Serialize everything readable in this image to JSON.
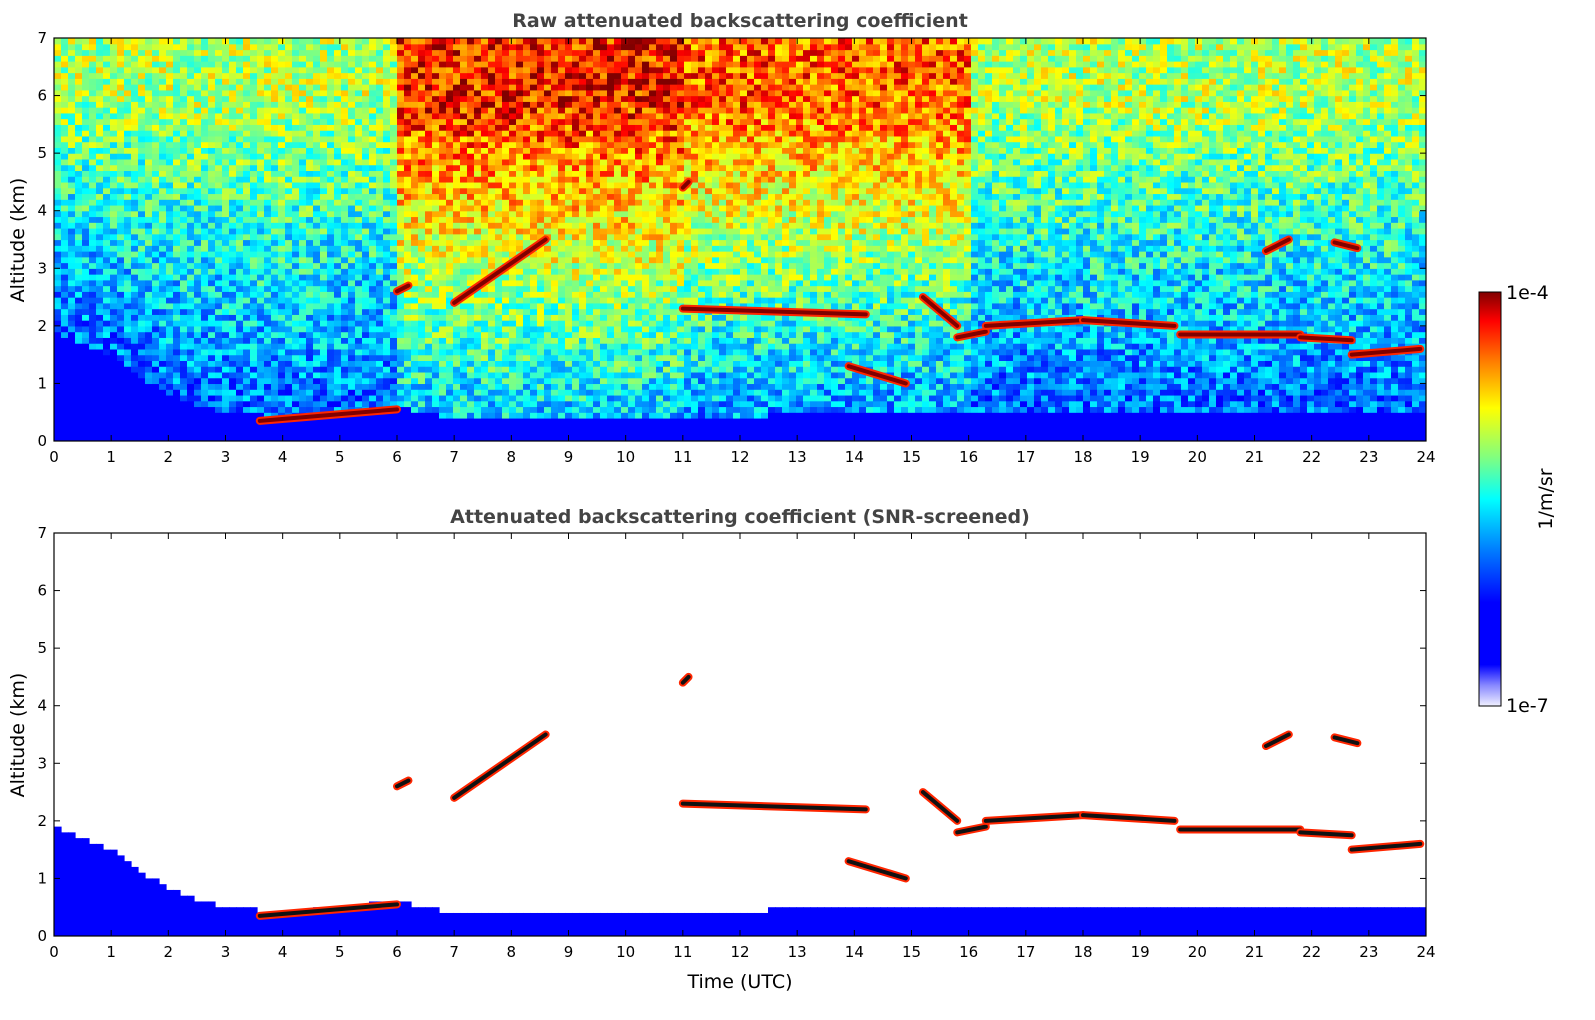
{
  "chart_data": [
    {
      "type": "heatmap",
      "title": "Raw attenuated backscattering coefficient",
      "xlabel": "",
      "ylabel": "Altitude (km)",
      "xlim": [
        0,
        24
      ],
      "ylim": [
        0,
        7
      ],
      "x_ticks": [
        "0",
        "1",
        "2",
        "3",
        "4",
        "5",
        "6",
        "7",
        "8",
        "9",
        "10",
        "11",
        "12",
        "13",
        "14",
        "15",
        "16",
        "17",
        "18",
        "19",
        "20",
        "21",
        "22",
        "23",
        "24"
      ],
      "y_ticks": [
        "0",
        "1",
        "2",
        "3",
        "4",
        "5",
        "6",
        "7"
      ],
      "background_noise": [
        {
          "time_start": 0,
          "time_end": 6,
          "level_low": 0.35,
          "level_high": 0.65
        },
        {
          "time_start": 6,
          "time_end": 11,
          "level_low": 0.45,
          "level_high": 0.9
        },
        {
          "time_start": 11,
          "time_end": 16,
          "level_low": 0.4,
          "level_high": 0.85
        },
        {
          "time_start": 16,
          "time_end": 24,
          "level_low": 0.35,
          "level_high": 0.65
        }
      ],
      "boundary_layer": [
        {
          "time": 0,
          "top_km": 1.9
        },
        {
          "time": 1,
          "top_km": 1.5
        },
        {
          "time": 2,
          "top_km": 0.8
        },
        {
          "time": 3,
          "top_km": 0.5
        },
        {
          "time": 4,
          "top_km": 0.4
        },
        {
          "time": 5,
          "top_km": 0.5
        },
        {
          "time": 6,
          "top_km": 0.6
        },
        {
          "time": 7,
          "top_km": 0.4
        },
        {
          "time": 10,
          "top_km": 0.4
        },
        {
          "time": 15,
          "top_km": 0.5
        },
        {
          "time": 24,
          "top_km": 0.5
        }
      ],
      "cloud_layers": [
        {
          "t0": 3.6,
          "t1": 6.0,
          "alt0": 0.35,
          "alt1": 0.55
        },
        {
          "t0": 6.0,
          "t1": 6.2,
          "alt0": 2.6,
          "alt1": 2.7
        },
        {
          "t0": 7.0,
          "t1": 8.6,
          "alt0": 2.4,
          "alt1": 3.5
        },
        {
          "t0": 11.0,
          "t1": 11.1,
          "alt0": 4.4,
          "alt1": 4.5
        },
        {
          "t0": 11.0,
          "t1": 14.2,
          "alt0": 2.3,
          "alt1": 2.2
        },
        {
          "t0": 13.9,
          "t1": 14.9,
          "alt0": 1.3,
          "alt1": 1.0
        },
        {
          "t0": 15.2,
          "t1": 15.8,
          "alt0": 2.5,
          "alt1": 2.0
        },
        {
          "t0": 15.8,
          "t1": 16.3,
          "alt0": 1.8,
          "alt1": 1.9
        },
        {
          "t0": 16.3,
          "t1": 18.0,
          "alt0": 2.0,
          "alt1": 2.1
        },
        {
          "t0": 18.0,
          "t1": 19.6,
          "alt0": 2.1,
          "alt1": 2.0
        },
        {
          "t0": 19.7,
          "t1": 21.8,
          "alt0": 1.85,
          "alt1": 1.85
        },
        {
          "t0": 21.8,
          "t1": 22.7,
          "alt0": 1.8,
          "alt1": 1.75
        },
        {
          "t0": 22.7,
          "t1": 23.9,
          "alt0": 1.5,
          "alt1": 1.6
        },
        {
          "t0": 21.2,
          "t1": 21.6,
          "alt0": 3.3,
          "alt1": 3.5
        },
        {
          "t0": 22.4,
          "t1": 22.8,
          "alt0": 3.45,
          "alt1": 3.35
        }
      ]
    },
    {
      "type": "heatmap",
      "title": "Attenuated backscattering coefficient (SNR-screened)",
      "xlabel": "Time (UTC)",
      "ylabel": "Altitude (km)",
      "xlim": [
        0,
        24
      ],
      "ylim": [
        0,
        7
      ],
      "x_ticks": [
        "0",
        "1",
        "2",
        "3",
        "4",
        "5",
        "6",
        "7",
        "8",
        "9",
        "10",
        "11",
        "12",
        "13",
        "14",
        "15",
        "16",
        "17",
        "18",
        "19",
        "20",
        "21",
        "22",
        "23",
        "24"
      ],
      "y_ticks": [
        "0",
        "1",
        "2",
        "3",
        "4",
        "5",
        "6",
        "7"
      ],
      "screened": true
    }
  ],
  "colorbar": {
    "label": "1/m/sr",
    "max_label": "1e-4",
    "min_label": "1e-7",
    "colormap": "jet",
    "colors": [
      "#f0f0ff",
      "#0000c8",
      "#0000ff",
      "#0080ff",
      "#00ffff",
      "#80ff80",
      "#ffff00",
      "#ff8000",
      "#ff0000",
      "#800000"
    ]
  }
}
